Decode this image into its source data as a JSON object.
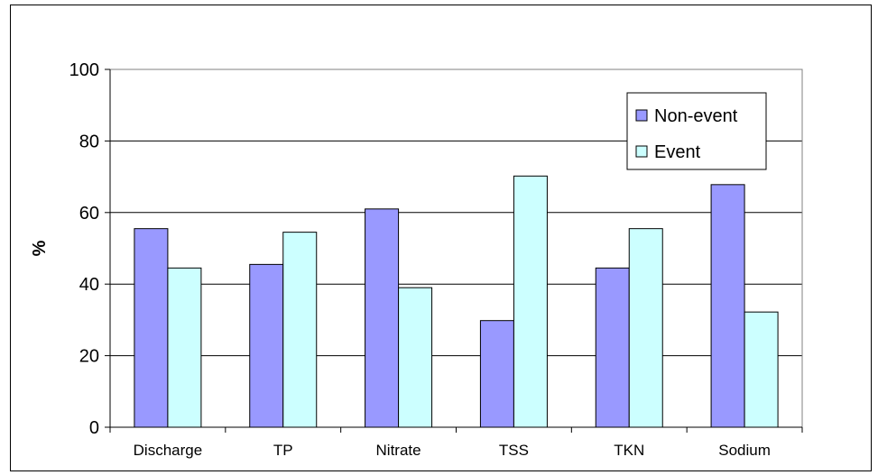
{
  "chart_data": {
    "type": "bar",
    "categories": [
      "Discharge",
      "TP",
      "Nitrate",
      "TSS",
      "TKN",
      "Sodium"
    ],
    "series": [
      {
        "name": "Non-event",
        "values": [
          55.5,
          45.5,
          61,
          29.8,
          44.5,
          67.8
        ],
        "color": "#9999ff"
      },
      {
        "name": "Event",
        "values": [
          44.5,
          54.5,
          39,
          70.2,
          55.5,
          32.2
        ],
        "color": "#ccffff"
      }
    ],
    "ylabel": "%",
    "ylim": [
      0,
      100
    ],
    "yticks": [
      "0",
      "20",
      "40",
      "60",
      "80",
      "100"
    ],
    "grid": true,
    "legend_position": "top-right"
  }
}
